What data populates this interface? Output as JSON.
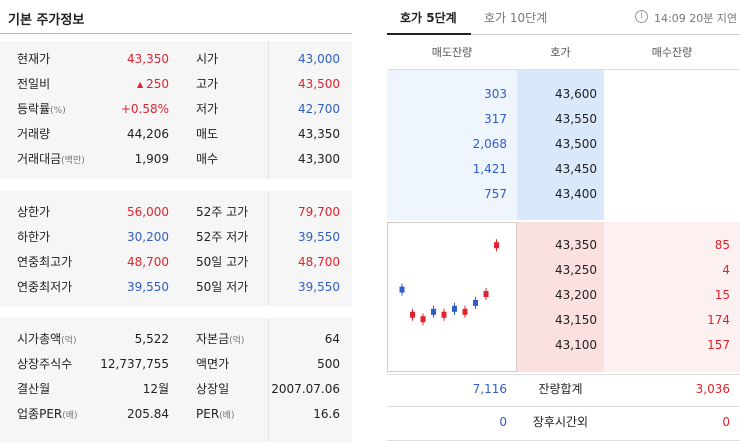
{
  "stock_info": {
    "title": "기본 주가정보",
    "group1": [
      {
        "label": "현재가",
        "value": "43,350",
        "value_color": "red",
        "label2": "시가",
        "value2": "43,000",
        "value2_color": "blue"
      },
      {
        "label": "전일비",
        "value": "250",
        "value_prefix": "▲",
        "value_color": "red",
        "label2": "고가",
        "value2": "43,500",
        "value2_color": "red"
      },
      {
        "label": "등락률",
        "label_suffix": "(%)",
        "value": "+0.58%",
        "value_color": "red",
        "label2": "저가",
        "value2": "42,700",
        "value2_color": "blue"
      },
      {
        "label": "거래량",
        "value": "44,206",
        "value_color": "dark",
        "label2": "매도",
        "value2": "43,350",
        "value2_color": "dark"
      },
      {
        "label": "거래대금",
        "label_suffix": "(백만)",
        "value": "1,909",
        "value_color": "dark",
        "label2": "매수",
        "value2": "43,300",
        "value2_color": "dark"
      }
    ],
    "group2": [
      {
        "label": "상한가",
        "value": "56,000",
        "value_color": "red",
        "label2": "52주 고가",
        "value2": "79,700",
        "value2_color": "red"
      },
      {
        "label": "하한가",
        "value": "30,200",
        "value_color": "blue",
        "label2": "52주 저가",
        "value2": "39,550",
        "value2_color": "blue"
      },
      {
        "label": "연중최고가",
        "value": "48,700",
        "value_color": "red",
        "label2": "50일 고가",
        "value2": "48,700",
        "value2_color": "red"
      },
      {
        "label": "연중최저가",
        "value": "39,550",
        "value_color": "blue",
        "label2": "50일 저가",
        "value2": "39,550",
        "value2_color": "blue"
      }
    ],
    "group3": [
      {
        "label": "시가총액",
        "label_suffix": "(억)",
        "value": "5,522",
        "value_color": "dark",
        "label2": "자본금",
        "label2_suffix": "(억)",
        "value2": "64",
        "value2_color": "dark"
      },
      {
        "label": "상장주식수",
        "value": "12,737,755",
        "value_color": "dark",
        "label2": "액면가",
        "value2": "500",
        "value2_color": "dark"
      },
      {
        "label": "결산월",
        "value": "12월",
        "value_color": "dark",
        "label2": "상장일",
        "value2": "2007.07.06",
        "value2_color": "dark"
      },
      {
        "label": "업종PER",
        "label_suffix": "(배)",
        "value": "205.84",
        "value_color": "dark",
        "label2": "PER",
        "label2_suffix": "(배)",
        "value2": "16.6",
        "value2_color": "dark"
      }
    ]
  },
  "orderbook": {
    "tabs": {
      "active": "호가 5단계",
      "inactive": "호가 10단계"
    },
    "info_icon": "info-icon",
    "delay_text": "14:09 20분 지연",
    "headers": {
      "ask": "매도잔량",
      "price": "호가",
      "bid": "매수잔량"
    },
    "asks": [
      {
        "qty": "303",
        "price": "43,600"
      },
      {
        "qty": "317",
        "price": "43,550"
      },
      {
        "qty": "2,068",
        "price": "43,500"
      },
      {
        "qty": "1,421",
        "price": "43,450"
      },
      {
        "qty": "757",
        "price": "43,400"
      }
    ],
    "bids": [
      {
        "price": "43,350",
        "qty": "85"
      },
      {
        "price": "43,250",
        "qty": "4"
      },
      {
        "price": "43,200",
        "qty": "15"
      },
      {
        "price": "43,150",
        "qty": "174"
      },
      {
        "price": "43,100",
        "qty": "157"
      }
    ],
    "totals": {
      "ask": "7,116",
      "label": "잔량합계",
      "bid": "3,036"
    },
    "after_hours": {
      "ask": "0",
      "label": "장후시간외",
      "bid": "0"
    },
    "mini_chart_candles": [
      {
        "dir": "up",
        "level": 0.55
      },
      {
        "dir": "down",
        "level": 0.38
      },
      {
        "dir": "down",
        "level": 0.35
      },
      {
        "dir": "up",
        "level": 0.4
      },
      {
        "dir": "down",
        "level": 0.38
      },
      {
        "dir": "up",
        "level": 0.42
      },
      {
        "dir": "down",
        "level": 0.4
      },
      {
        "dir": "up",
        "level": 0.46
      },
      {
        "dir": "down",
        "level": 0.52
      },
      {
        "dir": "down",
        "level": 0.85
      }
    ],
    "colors": {
      "up": "#e0232f",
      "down": "#2f5ec8"
    }
  }
}
